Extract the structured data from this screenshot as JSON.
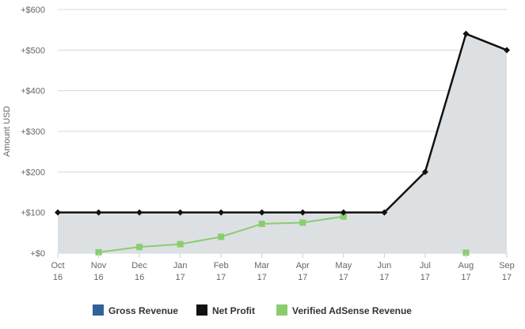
{
  "chart_data": {
    "type": "area",
    "categories": [
      "Oct 16",
      "Nov 16",
      "Dec 16",
      "Jan 17",
      "Feb 17",
      "Mar 17",
      "Apr 17",
      "May 17",
      "Jun 17",
      "Jul 17",
      "Aug 17",
      "Sep 17"
    ],
    "xlabel": "",
    "ylabel": "Amount USD",
    "ylim": [
      0,
      600
    ],
    "yticks": [
      0,
      100,
      200,
      300,
      400,
      500,
      600
    ],
    "ytick_labels": [
      "+$0",
      "+$100",
      "+$200",
      "+$300",
      "+$400",
      "+$500",
      "+$600"
    ],
    "grid": true,
    "legend_position": "bottom",
    "series": [
      {
        "name": "Gross Revenue",
        "color": "#2f6398",
        "values": [
          null,
          null,
          null,
          null,
          null,
          null,
          null,
          null,
          null,
          null,
          null,
          null
        ]
      },
      {
        "name": "Net Profit",
        "color": "#111111",
        "fill": "#dde0e3",
        "values": [
          100,
          100,
          100,
          100,
          100,
          100,
          100,
          100,
          100,
          200,
          540,
          500
        ]
      },
      {
        "name": "Verified AdSense Revenue",
        "color": "#8acd6e",
        "values": [
          null,
          2,
          15,
          22,
          40,
          72,
          75,
          90,
          null,
          null,
          1,
          null
        ]
      }
    ]
  }
}
